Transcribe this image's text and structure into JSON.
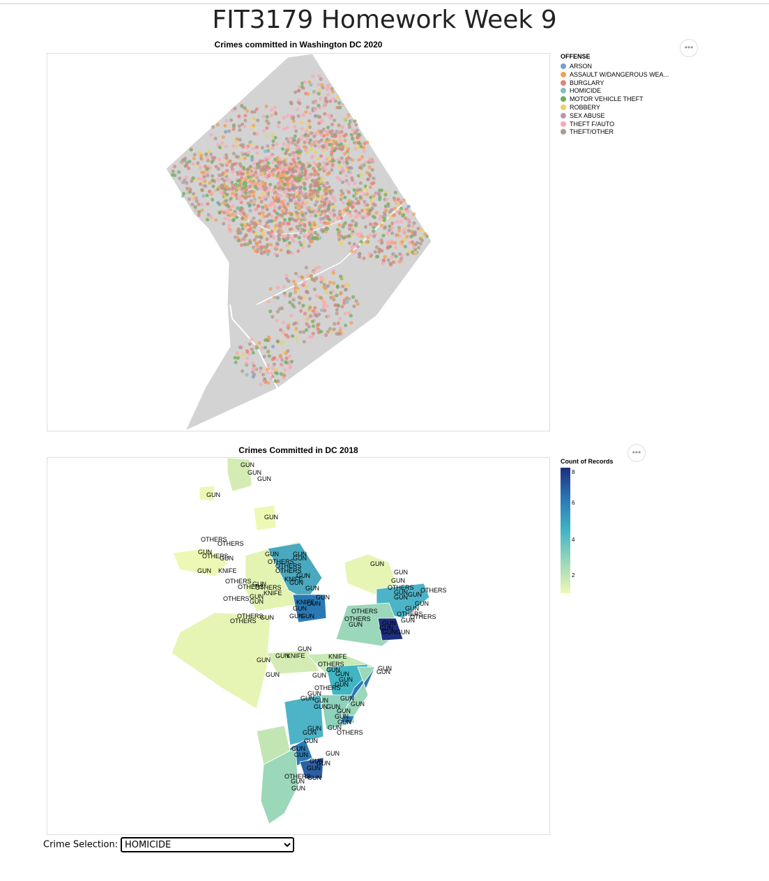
{
  "page": {
    "title": "FIT3179 Homework Week 9"
  },
  "map1": {
    "title": "Crimes committed in Washington DC 2020",
    "legend_title": "OFFENSE",
    "legend": [
      {
        "label": "ARSON",
        "color": "#7d9cc8"
      },
      {
        "label": "ASSAULT W/DANGEROUS WEA...",
        "color": "#f2a051"
      },
      {
        "label": "BURGLARY",
        "color": "#e5807a"
      },
      {
        "label": "HOMICIDE",
        "color": "#86bcbb"
      },
      {
        "label": "MOTOR VEHICLE THEFT",
        "color": "#70ad5f"
      },
      {
        "label": "ROBBERY",
        "color": "#ecd15b"
      },
      {
        "label": "SEX ABUSE",
        "color": "#bc93b1"
      },
      {
        "label": "THEFT F/AUTO",
        "color": "#f7a9b3"
      },
      {
        "label": "THEFT/OTHER",
        "color": "#b2978a"
      }
    ],
    "actions_label": "•••"
  },
  "map2": {
    "title": "Crimes Committed in DC 2018",
    "legend_title": "Count of Records",
    "legend_ticks": [
      "8",
      "6",
      "4",
      "2"
    ],
    "gradient": [
      "#1c2f7f",
      "#2a79b4",
      "#41b5c4",
      "#9bd7b9",
      "#edf8b4"
    ],
    "actions_label": "•••",
    "labels": [
      {
        "t": "GUN",
        "x": 277,
        "y": 13
      },
      {
        "t": "GUN",
        "x": 287,
        "y": 24
      },
      {
        "t": "GUN",
        "x": 301,
        "y": 33
      },
      {
        "t": "GUN",
        "x": 228,
        "y": 56
      },
      {
        "t": "GUN",
        "x": 311,
        "y": 88
      },
      {
        "t": "OTHERS",
        "x": 220,
        "y": 120
      },
      {
        "t": "OTHERS",
        "x": 244,
        "y": 126
      },
      {
        "t": "GUN",
        "x": 216,
        "y": 138
      },
      {
        "t": "OTHERS",
        "x": 222,
        "y": 144
      },
      {
        "t": "GUN",
        "x": 247,
        "y": 147
      },
      {
        "t": "GUN",
        "x": 312,
        "y": 141
      },
      {
        "t": "GUN",
        "x": 352,
        "y": 141
      },
      {
        "t": "GUN",
        "x": 352,
        "y": 147
      },
      {
        "t": "OTHERS",
        "x": 316,
        "y": 152
      },
      {
        "t": "OTHERS",
        "x": 327,
        "y": 158
      },
      {
        "t": "OTHERS",
        "x": 327,
        "y": 165
      },
      {
        "t": "GUN",
        "x": 215,
        "y": 165
      },
      {
        "t": "KNIFE",
        "x": 245,
        "y": 165
      },
      {
        "t": "GUN",
        "x": 357,
        "y": 172
      },
      {
        "t": "KNIFE",
        "x": 340,
        "y": 177
      },
      {
        "t": "GUN",
        "x": 347,
        "y": 182
      },
      {
        "t": "OTHERS",
        "x": 255,
        "y": 180
      },
      {
        "t": "GUN",
        "x": 294,
        "y": 184
      },
      {
        "t": "OTHERS",
        "x": 273,
        "y": 188
      },
      {
        "t": "OTHERS",
        "x": 298,
        "y": 189
      },
      {
        "t": "KNIFE",
        "x": 310,
        "y": 197
      },
      {
        "t": "GUN",
        "x": 370,
        "y": 190
      },
      {
        "t": "OTHERS",
        "x": 252,
        "y": 205
      },
      {
        "t": "GUN",
        "x": 290,
        "y": 202
      },
      {
        "t": "GUN",
        "x": 290,
        "y": 209
      },
      {
        "t": "GUN",
        "x": 385,
        "y": 203
      },
      {
        "t": "KNIFE",
        "x": 357,
        "y": 210
      },
      {
        "t": "GUN",
        "x": 372,
        "y": 212
      },
      {
        "t": "GUN",
        "x": 352,
        "y": 219
      },
      {
        "t": "GUN",
        "x": 347,
        "y": 230
      },
      {
        "t": "GUN",
        "x": 363,
        "y": 230
      },
      {
        "t": "OTHERS",
        "x": 272,
        "y": 230
      },
      {
        "t": "GUN",
        "x": 305,
        "y": 232
      },
      {
        "t": "OTHERS",
        "x": 262,
        "y": 237
      },
      {
        "t": "GUN",
        "x": 463,
        "y": 155
      },
      {
        "t": "GUN",
        "x": 497,
        "y": 167
      },
      {
        "t": "GUN",
        "x": 493,
        "y": 179
      },
      {
        "t": "OTHERS",
        "x": 488,
        "y": 189
      },
      {
        "t": "GUN",
        "x": 497,
        "y": 196
      },
      {
        "t": "GUN",
        "x": 497,
        "y": 203
      },
      {
        "t": "GUN",
        "x": 517,
        "y": 199
      },
      {
        "t": "OTHERS",
        "x": 535,
        "y": 193
      },
      {
        "t": "GUN",
        "x": 527,
        "y": 212
      },
      {
        "t": "GUN",
        "x": 513,
        "y": 219
      },
      {
        "t": "OTHERS",
        "x": 501,
        "y": 227
      },
      {
        "t": "OTHERS",
        "x": 520,
        "y": 231
      },
      {
        "t": "GUN",
        "x": 507,
        "y": 236
      },
      {
        "t": "GUN",
        "x": 500,
        "y": 253
      },
      {
        "t": "OTHERS",
        "x": 436,
        "y": 223
      },
      {
        "t": "OTHERS",
        "x": 426,
        "y": 234
      },
      {
        "t": "GUN",
        "x": 432,
        "y": 242
      },
      {
        "t": "GUN",
        "x": 480,
        "y": 240
      },
      {
        "t": "GUN",
        "x": 476,
        "y": 247
      },
      {
        "t": "GUN",
        "x": 480,
        "y": 253
      },
      {
        "t": "GUN",
        "x": 359,
        "y": 277
      },
      {
        "t": "GUN",
        "x": 300,
        "y": 293
      },
      {
        "t": "GUN",
        "x": 327,
        "y": 287
      },
      {
        "t": "KNIFE",
        "x": 343,
        "y": 287
      },
      {
        "t": "KNIFE",
        "x": 403,
        "y": 288
      },
      {
        "t": "OTHERS",
        "x": 388,
        "y": 299
      },
      {
        "t": "GUN",
        "x": 400,
        "y": 307
      },
      {
        "t": "GUN",
        "x": 413,
        "y": 313
      },
      {
        "t": "GUN",
        "x": 380,
        "y": 315
      },
      {
        "t": "GUN",
        "x": 313,
        "y": 314
      },
      {
        "t": "GUN",
        "x": 472,
        "y": 310
      },
      {
        "t": "GUN",
        "x": 418,
        "y": 321
      },
      {
        "t": "GUN",
        "x": 412,
        "y": 328
      },
      {
        "t": "OTHERS",
        "x": 383,
        "y": 333
      },
      {
        "t": "GUN",
        "x": 373,
        "y": 341
      },
      {
        "t": "GUN",
        "x": 363,
        "y": 348
      },
      {
        "t": "GUN",
        "x": 383,
        "y": 351
      },
      {
        "t": "GUN",
        "x": 420,
        "y": 348
      },
      {
        "t": "GUN",
        "x": 435,
        "y": 356
      },
      {
        "t": "GUN",
        "x": 382,
        "y": 360
      },
      {
        "t": "GUN",
        "x": 400,
        "y": 360
      },
      {
        "t": "GUN",
        "x": 415,
        "y": 366
      },
      {
        "t": "GUN",
        "x": 412,
        "y": 374
      },
      {
        "t": "GUN",
        "x": 416,
        "y": 382
      },
      {
        "t": "GUN",
        "x": 402,
        "y": 390
      },
      {
        "t": "OTHERS",
        "x": 415,
        "y": 397
      },
      {
        "t": "GUN",
        "x": 373,
        "y": 391
      },
      {
        "t": "GUN",
        "x": 366,
        "y": 397
      },
      {
        "t": "GUN",
        "x": 368,
        "y": 409
      },
      {
        "t": "GUN",
        "x": 350,
        "y": 420
      },
      {
        "t": "GUN",
        "x": 354,
        "y": 429
      },
      {
        "t": "GUN",
        "x": 399,
        "y": 427
      },
      {
        "t": "GUN",
        "x": 376,
        "y": 438
      },
      {
        "t": "GUN",
        "x": 386,
        "y": 441
      },
      {
        "t": "GUN",
        "x": 372,
        "y": 448
      },
      {
        "t": "OTHERS",
        "x": 340,
        "y": 460
      },
      {
        "t": "GUN",
        "x": 349,
        "y": 467
      },
      {
        "t": "GUN",
        "x": 373,
        "y": 462
      },
      {
        "t": "GUN",
        "x": 350,
        "y": 477
      },
      {
        "t": "GUN",
        "x": 474,
        "y": 305
      }
    ]
  },
  "control": {
    "label": "Crime Selection:",
    "selected": "HOMICIDE",
    "options": [
      "HOMICIDE"
    ]
  }
}
